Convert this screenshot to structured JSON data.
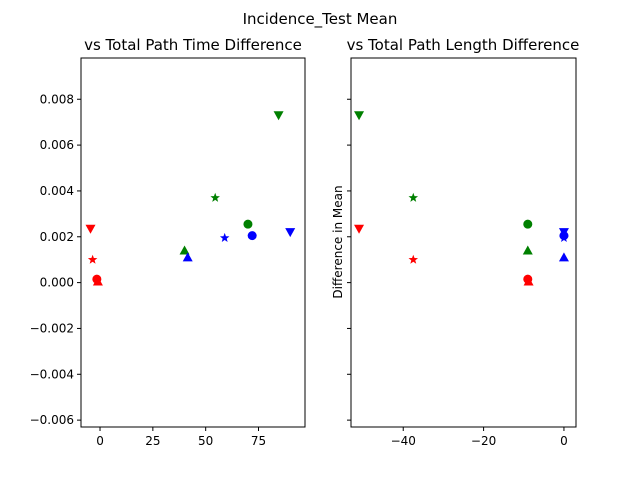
{
  "chart_data": {
    "suptitle": "Incidence_Test Mean",
    "panels": [
      {
        "type": "scatter",
        "title": "vs Total Path Time Difference",
        "xlabel": "",
        "ylabel": "",
        "xlim": [
          -9,
          97
        ],
        "ylim": [
          -0.0063,
          0.0098
        ],
        "xticks": [
          0,
          25,
          50,
          75
        ],
        "xtick_labels": [
          "0",
          "25",
          "50",
          "75"
        ],
        "yticks": [
          -0.006,
          -0.004,
          -0.002,
          0.0,
          0.002,
          0.004,
          0.006,
          0.008
        ],
        "ytick_labels": [
          "−0.006",
          "−0.004",
          "−0.002",
          "0.000",
          "0.002",
          "0.004",
          "0.006",
          "0.008"
        ],
        "points": [
          {
            "x": -4.5,
            "y": 0.00235,
            "color": "red",
            "marker": "triangle_down"
          },
          {
            "x": -3.5,
            "y": 0.001,
            "color": "red",
            "marker": "star"
          },
          {
            "x": -1.5,
            "y": 0.00015,
            "color": "red",
            "marker": "circle"
          },
          {
            "x": -1.0,
            "y": 5e-05,
            "color": "red",
            "marker": "triangle_up"
          },
          {
            "x": 40.0,
            "y": 0.0014,
            "color": "green",
            "marker": "triangle_up"
          },
          {
            "x": 54.5,
            "y": 0.0037,
            "color": "green",
            "marker": "star"
          },
          {
            "x": 70.0,
            "y": 0.00255,
            "color": "green",
            "marker": "circle"
          },
          {
            "x": 84.5,
            "y": 0.0073,
            "color": "green",
            "marker": "triangle_down"
          },
          {
            "x": 41.5,
            "y": 0.0011,
            "color": "blue",
            "marker": "triangle_up"
          },
          {
            "x": 59.0,
            "y": 0.00195,
            "color": "blue",
            "marker": "star"
          },
          {
            "x": 72.0,
            "y": 0.00205,
            "color": "blue",
            "marker": "circle"
          },
          {
            "x": 90.0,
            "y": 0.0022,
            "color": "blue",
            "marker": "triangle_down"
          }
        ]
      },
      {
        "type": "scatter",
        "title": "vs Total Path Length Difference",
        "xlabel": "",
        "ylabel": "Difference in Mean",
        "xlim": [
          -53.0,
          3.0
        ],
        "ylim": [
          -0.0063,
          0.0098
        ],
        "xticks": [
          -40,
          -20,
          0
        ],
        "xtick_labels": [
          "−40",
          "−20",
          "0"
        ],
        "yticks": [
          -0.006,
          -0.004,
          -0.002,
          0.0,
          0.002,
          0.004,
          0.006,
          0.008
        ],
        "ytick_labels": [],
        "points": [
          {
            "x": -51.0,
            "y": 0.0073,
            "color": "green",
            "marker": "triangle_down"
          },
          {
            "x": -51.0,
            "y": 0.00235,
            "color": "red",
            "marker": "triangle_down"
          },
          {
            "x": -37.5,
            "y": 0.0037,
            "color": "green",
            "marker": "star"
          },
          {
            "x": -37.5,
            "y": 0.001,
            "color": "red",
            "marker": "star"
          },
          {
            "x": -9.0,
            "y": 0.00255,
            "color": "green",
            "marker": "circle"
          },
          {
            "x": -9.0,
            "y": 0.0014,
            "color": "green",
            "marker": "triangle_up"
          },
          {
            "x": -9.0,
            "y": 0.00015,
            "color": "red",
            "marker": "circle"
          },
          {
            "x": -8.8,
            "y": 5e-05,
            "color": "red",
            "marker": "triangle_up"
          },
          {
            "x": 0.0,
            "y": 0.0022,
            "color": "blue",
            "marker": "triangle_down"
          },
          {
            "x": 0.0,
            "y": 0.00205,
            "color": "blue",
            "marker": "circle"
          },
          {
            "x": 0.0,
            "y": 0.00195,
            "color": "blue",
            "marker": "star"
          },
          {
            "x": 0.0,
            "y": 0.0011,
            "color": "blue",
            "marker": "triangle_up"
          }
        ]
      }
    ]
  },
  "colors": {
    "red": "#ff0000",
    "green": "#008000",
    "blue": "#0000ff",
    "axis": "#000000",
    "background": "#ffffff"
  }
}
